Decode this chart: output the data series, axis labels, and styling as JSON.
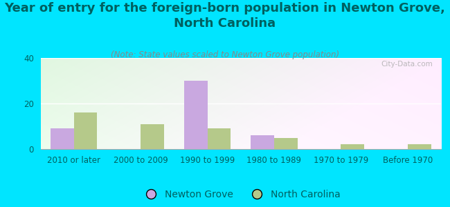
{
  "title": "Year of entry for the foreign-born population in Newton Grove,\nNorth Carolina",
  "subtitle": "(Note: State values scaled to Newton Grove population)",
  "categories": [
    "2010 or later",
    "2000 to 2009",
    "1990 to 1999",
    "1980 to 1989",
    "1970 to 1979",
    "Before 1970"
  ],
  "newton_grove": [
    9,
    0,
    30,
    6,
    0,
    0
  ],
  "north_carolina": [
    16,
    11,
    9,
    5,
    2,
    2
  ],
  "newton_grove_color": "#c9a8e0",
  "north_carolina_color": "#b5c98a",
  "background_outer": "#00e5ff",
  "ylim": [
    0,
    40
  ],
  "yticks": [
    0,
    20,
    40
  ],
  "bar_width": 0.35,
  "title_fontsize": 13,
  "subtitle_fontsize": 8.5,
  "legend_fontsize": 10,
  "tick_fontsize": 8.5,
  "watermark": "City-Data.com",
  "title_color": "#006060",
  "subtitle_color": "#888888",
  "tick_color": "#006060"
}
